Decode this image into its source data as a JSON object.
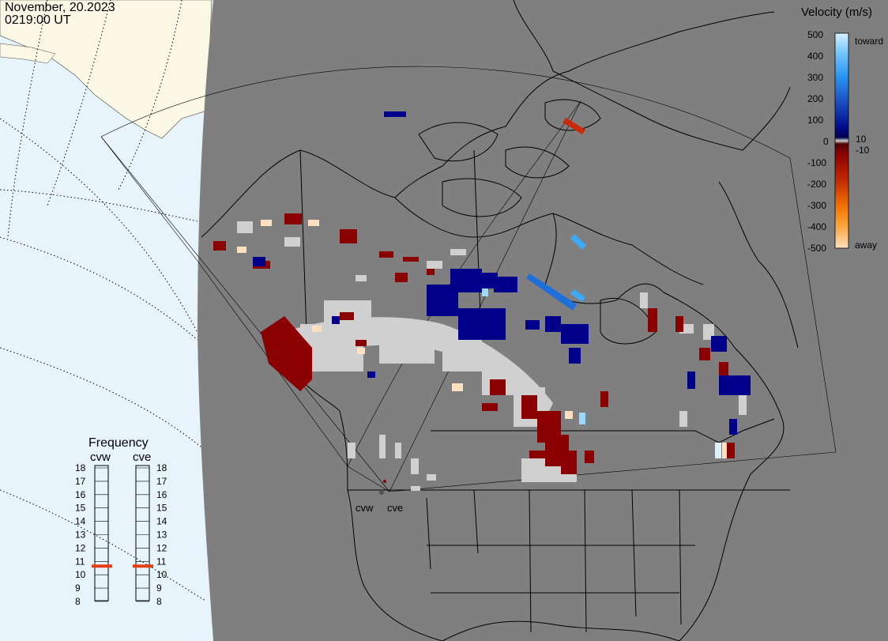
{
  "header": {
    "date": "November, 20.2023",
    "time": "0219:00 UT"
  },
  "colors": {
    "background_water": "#e8f4fc",
    "land_outside": "#fbf9e6",
    "map_gray": "#7f7f7f",
    "coast": "#000000",
    "ground_scatter": "#d0d0d0",
    "away_dark": "#8b0000",
    "toward_dark": "#00008b",
    "toward_mid": "#1e6fd9",
    "toward_light": "#3fa9f5",
    "frequency_marker": "#e63c14"
  },
  "velocity_scale": {
    "title": "Velocity (m/s)",
    "ticks": [
      "500",
      "400",
      "300",
      "200",
      "100",
      "10",
      "0",
      "-10",
      "-100",
      "-200",
      "-300",
      "-400",
      "-500"
    ],
    "toward_label": "toward",
    "away_label": "away"
  },
  "frequency_panel": {
    "title": "Frequency",
    "radars": [
      {
        "code": "cvw",
        "value": 11
      },
      {
        "code": "cve",
        "value": 11
      }
    ],
    "ticks": [
      "18",
      "17",
      "16",
      "15",
      "14",
      "13",
      "12",
      "11",
      "10",
      "9",
      "8"
    ]
  },
  "radar_labels": [
    "cvw",
    "cve"
  ]
}
